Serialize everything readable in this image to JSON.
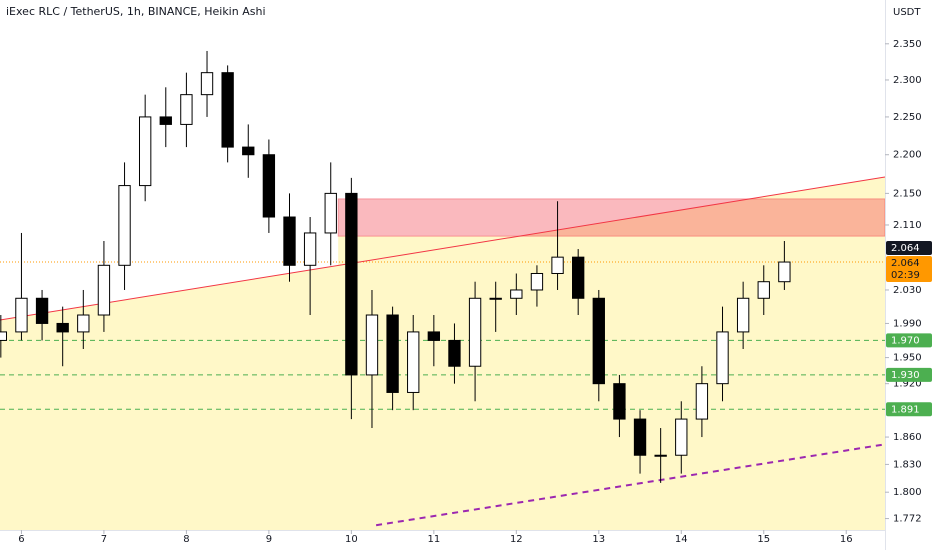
{
  "chart_data": {
    "type": "candlestick",
    "title": "iExec RLC / TetherUS, 1h, BINANCE, Heikin Ashi",
    "currency": "USDT",
    "x": [
      5.75,
      6.0,
      6.25,
      6.5,
      6.75,
      7.0,
      7.25,
      7.5,
      7.75,
      8.0,
      8.25,
      8.5,
      8.75,
      9.0,
      9.25,
      9.5,
      9.75,
      10.0,
      10.25,
      10.5,
      10.75,
      11.0,
      11.25,
      11.5,
      11.75,
      12.0,
      12.25,
      12.5,
      12.75,
      13.0,
      13.25,
      13.5,
      13.75,
      14.0,
      14.25,
      14.5,
      14.75,
      15.0,
      15.25
    ],
    "open": [
      1.97,
      1.98,
      2.02,
      1.99,
      1.98,
      2.0,
      2.06,
      2.16,
      2.25,
      2.24,
      2.28,
      2.31,
      2.21,
      2.2,
      2.12,
      2.06,
      2.1,
      2.15,
      1.93,
      2.0,
      1.91,
      1.98,
      1.97,
      1.94,
      2.02,
      2.02,
      2.03,
      2.05,
      2.07,
      2.02,
      1.92,
      1.88,
      1.84,
      1.84,
      1.88,
      1.92,
      1.98,
      2.02,
      2.04
    ],
    "high": [
      2.0,
      2.1,
      2.03,
      2.01,
      2.03,
      2.09,
      2.19,
      2.28,
      2.29,
      2.31,
      2.34,
      2.32,
      2.24,
      2.22,
      2.15,
      2.12,
      2.19,
      2.17,
      2.03,
      2.01,
      2.0,
      2.0,
      1.99,
      2.04,
      2.04,
      2.05,
      2.06,
      2.14,
      2.08,
      2.03,
      1.93,
      1.89,
      1.87,
      1.9,
      1.94,
      2.01,
      2.04,
      2.06,
      2.09
    ],
    "low": [
      1.95,
      1.97,
      1.97,
      1.94,
      1.96,
      1.98,
      2.03,
      2.14,
      2.21,
      2.21,
      2.25,
      2.19,
      2.17,
      2.1,
      2.04,
      2.0,
      2.06,
      1.88,
      1.87,
      1.89,
      1.89,
      1.94,
      1.92,
      1.9,
      1.98,
      2.0,
      2.01,
      2.03,
      2.0,
      1.9,
      1.86,
      1.82,
      1.81,
      1.82,
      1.86,
      1.9,
      1.96,
      2.0,
      2.03
    ],
    "close": [
      1.98,
      2.02,
      1.99,
      1.98,
      2.0,
      2.06,
      2.16,
      2.25,
      2.24,
      2.28,
      2.31,
      2.21,
      2.2,
      2.12,
      2.06,
      2.1,
      2.15,
      1.93,
      2.0,
      1.91,
      1.98,
      1.97,
      1.94,
      2.02,
      2.02,
      2.03,
      2.05,
      2.07,
      2.02,
      1.92,
      1.88,
      1.84,
      1.84,
      1.88,
      1.92,
      1.98,
      2.02,
      2.04,
      2.064
    ],
    "up_color": "#ffffff",
    "down_color": "#000000",
    "xlim": [
      5.74,
      16.47
    ],
    "xticks": [
      6,
      7,
      8,
      9,
      10,
      11,
      12,
      13,
      14,
      15,
      16
    ],
    "ylim": [
      1.76,
      2.412
    ],
    "log_scale": true,
    "yticks": [
      {
        "value": 2.35,
        "label": "2.350"
      },
      {
        "value": 2.3,
        "label": "2.300"
      },
      {
        "value": 2.25,
        "label": "2.250"
      },
      {
        "value": 2.2,
        "label": "2.200"
      },
      {
        "value": 2.15,
        "label": "2.150"
      },
      {
        "value": 2.11,
        "label": "2.110"
      },
      {
        "value": 2.03,
        "label": "2.030"
      },
      {
        "value": 1.99,
        "label": "1.990"
      },
      {
        "value": 1.95,
        "label": "1.950"
      },
      {
        "value": 1.92,
        "label": "1.920"
      },
      {
        "value": 1.86,
        "label": "1.860"
      },
      {
        "value": 1.83,
        "label": "1.830"
      },
      {
        "value": 1.8,
        "label": "1.800"
      },
      1.772
    ],
    "last_price": {
      "value": 2.064,
      "label": "2.064",
      "color": "#ff9800"
    },
    "countdown": "02:39",
    "levels": [
      {
        "value": 1.97,
        "label": "1.970"
      },
      {
        "value": 1.93,
        "label": "1.930"
      },
      {
        "value": 1.891,
        "label": "1.891"
      }
    ],
    "level_color": "#4caf50",
    "trendlines": [
      {
        "x": [
          5.74,
          16.47
        ],
        "y": [
          1.994,
          2.171
        ],
        "color": "#f23645",
        "dash": "none"
      },
      {
        "x": [
          10.3,
          16.47
        ],
        "y": [
          1.765,
          1.852
        ],
        "color": "#9c27b0",
        "dash": "6 5"
      }
    ],
    "zone": {
      "x": [
        9.84,
        16.47
      ],
      "y": [
        2.096,
        2.143
      ],
      "color": "#f23645"
    },
    "fill_color": "#fff8c8"
  }
}
